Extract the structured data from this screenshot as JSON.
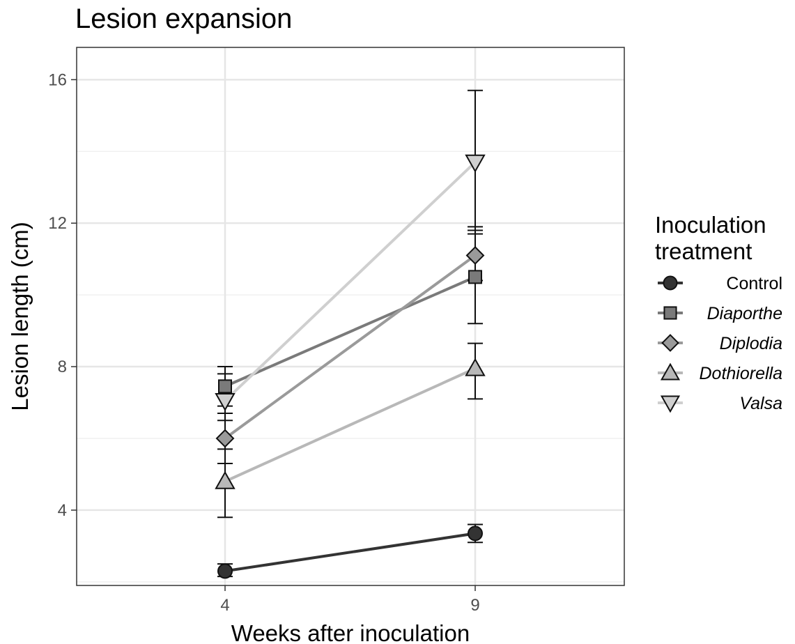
{
  "chart_data": {
    "type": "line",
    "title": "Lesion expansion",
    "xlabel": "Weeks after inoculation",
    "ylabel": "Lesion length (cm)",
    "x": [
      4,
      9
    ],
    "x_ticks": [
      "4",
      "9"
    ],
    "y_ticks": [
      4,
      8,
      12,
      16
    ],
    "ylim": [
      1.9,
      16.9
    ],
    "grid": true,
    "legend": {
      "title": [
        "Inoculation",
        "treatment"
      ],
      "placement": "right"
    },
    "series": [
      {
        "name": "Control",
        "italic": false,
        "marker": "circle",
        "color": "#333333",
        "fill": "#333333",
        "values": [
          2.3,
          3.35
        ],
        "err_low": [
          2.15,
          3.1
        ],
        "err_high": [
          2.5,
          3.6
        ]
      },
      {
        "name": "Diaporthe",
        "italic": true,
        "marker": "square",
        "color": "#7a7a7a",
        "fill": "#7a7a7a",
        "values": [
          7.45,
          10.5
        ],
        "err_low": [
          6.9,
          9.2
        ],
        "err_high": [
          8.0,
          11.8
        ]
      },
      {
        "name": "Diplodia",
        "italic": true,
        "marker": "diamond",
        "color": "#9a9a9a",
        "fill": "#9a9a9a",
        "values": [
          6.0,
          11.1
        ],
        "err_low": [
          5.3,
          10.4
        ],
        "err_high": [
          6.7,
          11.9
        ]
      },
      {
        "name": "Dothiorella",
        "italic": true,
        "marker": "triangle-up",
        "color": "#b8b8b8",
        "fill": "#b8b8b8",
        "values": [
          4.8,
          7.95
        ],
        "err_low": [
          3.8,
          7.1
        ],
        "err_high": [
          5.7,
          8.65
        ]
      },
      {
        "name": "Valsa",
        "italic": true,
        "marker": "triangle-down",
        "color": "#cfcfcf",
        "fill": "#cfcfcf",
        "values": [
          7.05,
          13.7
        ],
        "err_low": [
          6.5,
          11.7
        ],
        "err_high": [
          7.8,
          15.7
        ]
      }
    ]
  }
}
